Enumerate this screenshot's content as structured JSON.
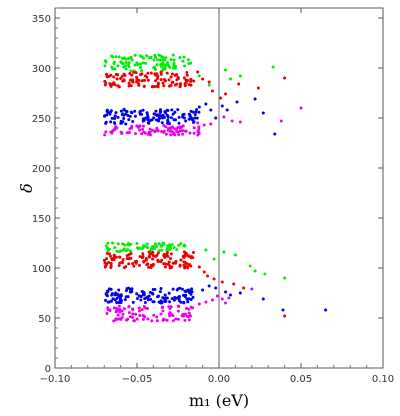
{
  "chart_data": {
    "type": "scatter",
    "title": "",
    "xlabel": "m₁ (eV)",
    "ylabel": "δ",
    "xlim": [
      -0.1,
      0.1
    ],
    "ylim": [
      0,
      360
    ],
    "xticks": [
      -0.1,
      -0.05,
      0.0,
      0.05,
      0.1
    ],
    "xtick_labels": [
      "−0.10",
      "−0.05",
      "0.00",
      "0.05",
      "0.10"
    ],
    "yticks": [
      0,
      50,
      100,
      150,
      200,
      250,
      300,
      350
    ],
    "ytick_labels": [
      "0",
      "50",
      "100",
      "150",
      "200",
      "250",
      "300",
      "350"
    ],
    "vertical_reference_line_x": 0.0,
    "grid": false,
    "legend": "none",
    "series": [
      {
        "color": "#00ee00",
        "bands": [
          {
            "x_min": -0.07,
            "x_max": -0.017,
            "y_min": 297,
            "y_max": 313,
            "n": 95
          },
          {
            "x_min": -0.07,
            "x_max": -0.02,
            "y_min": 116,
            "y_max": 125,
            "n": 70
          }
        ],
        "points": [
          [
            -0.012,
            292
          ],
          [
            -0.006,
            283
          ],
          [
            0.004,
            298
          ],
          [
            0.007,
            289
          ],
          [
            0.013,
            292
          ],
          [
            0.033,
            301
          ],
          [
            0.003,
            116
          ],
          [
            0.01,
            113
          ],
          [
            0.019,
            102
          ],
          [
            0.022,
            97
          ],
          [
            0.028,
            94
          ],
          [
            0.04,
            90
          ],
          [
            -0.008,
            118
          ],
          [
            -0.003,
            109
          ]
        ]
      },
      {
        "color": "#ee0000",
        "bands": [
          {
            "x_min": -0.07,
            "x_max": -0.015,
            "y_min": 281,
            "y_max": 296,
            "n": 110
          },
          {
            "x_min": -0.07,
            "x_max": -0.015,
            "y_min": 100,
            "y_max": 116,
            "n": 130
          }
        ],
        "points": [
          [
            -0.013,
            296
          ],
          [
            -0.01,
            289
          ],
          [
            -0.006,
            286
          ],
          [
            -0.004,
            277
          ],
          [
            0.001,
            270
          ],
          [
            0.004,
            274
          ],
          [
            0.012,
            284
          ],
          [
            0.024,
            280
          ],
          [
            0.04,
            290
          ],
          [
            -0.012,
            101
          ],
          [
            -0.009,
            96
          ],
          [
            -0.007,
            92
          ],
          [
            -0.003,
            89
          ],
          [
            0.002,
            86
          ],
          [
            0.009,
            84
          ],
          [
            0.015,
            80
          ],
          [
            0.04,
            52
          ]
        ]
      },
      {
        "color": "#0000ee",
        "bands": [
          {
            "x_min": -0.07,
            "x_max": -0.012,
            "y_min": 244,
            "y_max": 259,
            "n": 130
          },
          {
            "x_min": -0.07,
            "x_max": -0.015,
            "y_min": 65,
            "y_max": 80,
            "n": 130
          }
        ],
        "points": [
          [
            -0.012,
            261
          ],
          [
            -0.008,
            264
          ],
          [
            -0.005,
            258
          ],
          [
            -0.002,
            250
          ],
          [
            0.002,
            262
          ],
          [
            0.005,
            258
          ],
          [
            0.011,
            266
          ],
          [
            0.022,
            269
          ],
          [
            0.027,
            255
          ],
          [
            0.034,
            234
          ],
          [
            -0.01,
            78
          ],
          [
            -0.006,
            82
          ],
          [
            -0.002,
            80
          ],
          [
            0.004,
            76
          ],
          [
            0.007,
            73
          ],
          [
            0.013,
            75
          ],
          [
            0.027,
            69
          ],
          [
            0.039,
            58
          ],
          [
            0.065,
            58
          ]
        ]
      },
      {
        "color": "#ee00ee",
        "bands": [
          {
            "x_min": -0.07,
            "x_max": -0.012,
            "y_min": 233,
            "y_max": 243,
            "n": 85
          },
          {
            "x_min": -0.07,
            "x_max": -0.015,
            "y_min": 47,
            "y_max": 62,
            "n": 95
          }
        ],
        "points": [
          [
            -0.013,
            245
          ],
          [
            -0.009,
            243
          ],
          [
            -0.005,
            244
          ],
          [
            0.003,
            251
          ],
          [
            0.008,
            247
          ],
          [
            0.013,
            246
          ],
          [
            0.05,
            260
          ],
          [
            0.038,
            247
          ],
          [
            -0.012,
            64
          ],
          [
            -0.008,
            66
          ],
          [
            -0.004,
            68
          ],
          [
            -0.001,
            72
          ],
          [
            0.002,
            69
          ],
          [
            0.004,
            65
          ],
          [
            0.006,
            70
          ],
          [
            0.02,
            79
          ]
        ]
      }
    ]
  }
}
